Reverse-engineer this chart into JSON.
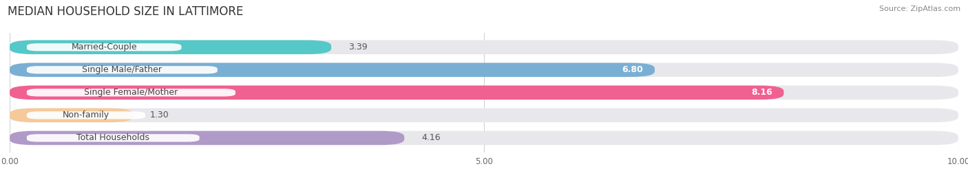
{
  "title": "MEDIAN HOUSEHOLD SIZE IN LATTIMORE",
  "source": "Source: ZipAtlas.com",
  "categories": [
    "Married-Couple",
    "Single Male/Father",
    "Single Female/Mother",
    "Non-family",
    "Total Households"
  ],
  "values": [
    3.39,
    6.8,
    8.16,
    1.3,
    4.16
  ],
  "bar_colors": [
    "#56c8c8",
    "#7aafd4",
    "#f06090",
    "#f5c99a",
    "#b09ac8"
  ],
  "bar_bg_color": "#e8e8ec",
  "label_bg_color": "#ffffff",
  "xlim": [
    0,
    10
  ],
  "xtick_labels": [
    "0.00",
    "5.00",
    "10.00"
  ],
  "title_fontsize": 12,
  "source_fontsize": 8,
  "label_fontsize": 9,
  "value_fontsize": 9,
  "bar_height": 0.62,
  "figsize": [
    14.06,
    2.68
  ],
  "dpi": 100,
  "value_inside_threshold": 5.5
}
